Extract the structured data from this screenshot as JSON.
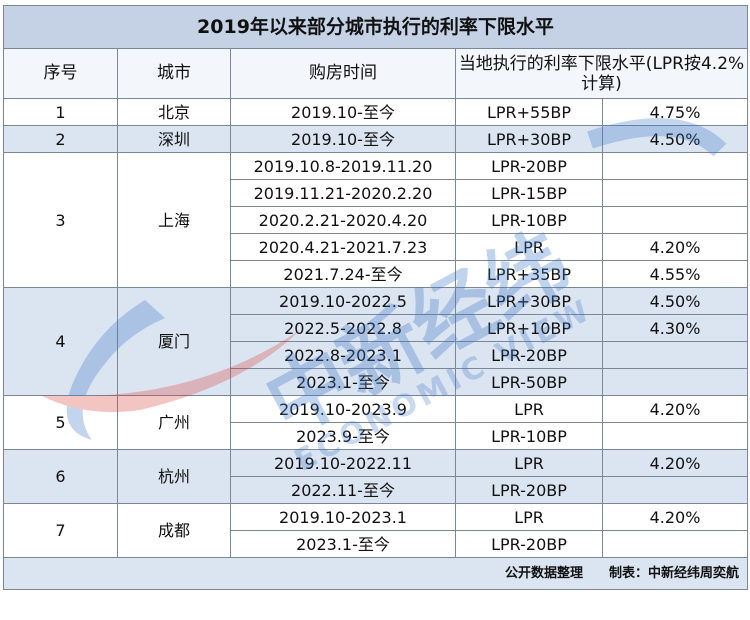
{
  "title": "2019年以来部分城市执行的利率下限水平",
  "headers": {
    "index": "序号",
    "city": "城市",
    "period": "购房时间",
    "rate": "当地执行的利率下限水平(LPR按4.2%计算)"
  },
  "groups": [
    {
      "index": "1",
      "city": "北京",
      "rows": [
        {
          "period": "2019.10-至今",
          "spread": "LPR+55BP",
          "rate": "4.75%"
        }
      ]
    },
    {
      "index": "2",
      "city": "深圳",
      "rows": [
        {
          "period": "2019.10-至今",
          "spread": "LPR+30BP",
          "rate": "4.50%"
        }
      ]
    },
    {
      "index": "3",
      "city": "上海",
      "rows": [
        {
          "period": "2019.10.8-2019.11.20",
          "spread": "LPR-20BP",
          "rate": ""
        },
        {
          "period": "2019.11.21-2020.2.20",
          "spread": "LPR-15BP",
          "rate": ""
        },
        {
          "period": "2020.2.21-2020.4.20",
          "spread": "LPR-10BP",
          "rate": ""
        },
        {
          "period": "2020.4.21-2021.7.23",
          "spread": "LPR",
          "rate": "4.20%"
        },
        {
          "period": "2021.7.24-至今",
          "spread": "LPR+35BP",
          "rate": "4.55%"
        }
      ]
    },
    {
      "index": "4",
      "city": "厦门",
      "rows": [
        {
          "period": "2019.10-2022.5",
          "spread": "LPR+30BP",
          "rate": "4.50%"
        },
        {
          "period": "2022.5-2022.8",
          "spread": "LPR+10BP",
          "rate": "4.30%"
        },
        {
          "period": "2022.8-2023.1",
          "spread": "LPR-20BP",
          "rate": ""
        },
        {
          "period": "2023.1-至今",
          "spread": "LPR-50BP",
          "rate": ""
        }
      ]
    },
    {
      "index": "5",
      "city": "广州",
      "rows": [
        {
          "period": "2019.10-2023.9",
          "spread": "LPR",
          "rate": "4.20%"
        },
        {
          "period": "2023.9-至今",
          "spread": "LPR-10BP",
          "rate": ""
        }
      ]
    },
    {
      "index": "6",
      "city": "杭州",
      "rows": [
        {
          "period": "2019.10-2022.11",
          "spread": "LPR",
          "rate": "4.20%"
        },
        {
          "period": "2022.11-至今",
          "spread": "LPR-20BP",
          "rate": ""
        }
      ]
    },
    {
      "index": "7",
      "city": "成都",
      "rows": [
        {
          "period": "2019.10-2023.1",
          "spread": "LPR",
          "rate": "4.20%"
        },
        {
          "period": "2023.1-至今",
          "spread": "LPR-20BP",
          "rate": ""
        }
      ]
    }
  ],
  "footer": {
    "source": "公开数据整理",
    "credit": "制表：中新经纬周奕航"
  },
  "watermark": {
    "logo_text": "中新经纬",
    "english": "ECONOMIC VIEW"
  },
  "colors": {
    "header": "#c5d2e6",
    "band": "#dbe4f1",
    "grid": "#7a8797"
  }
}
